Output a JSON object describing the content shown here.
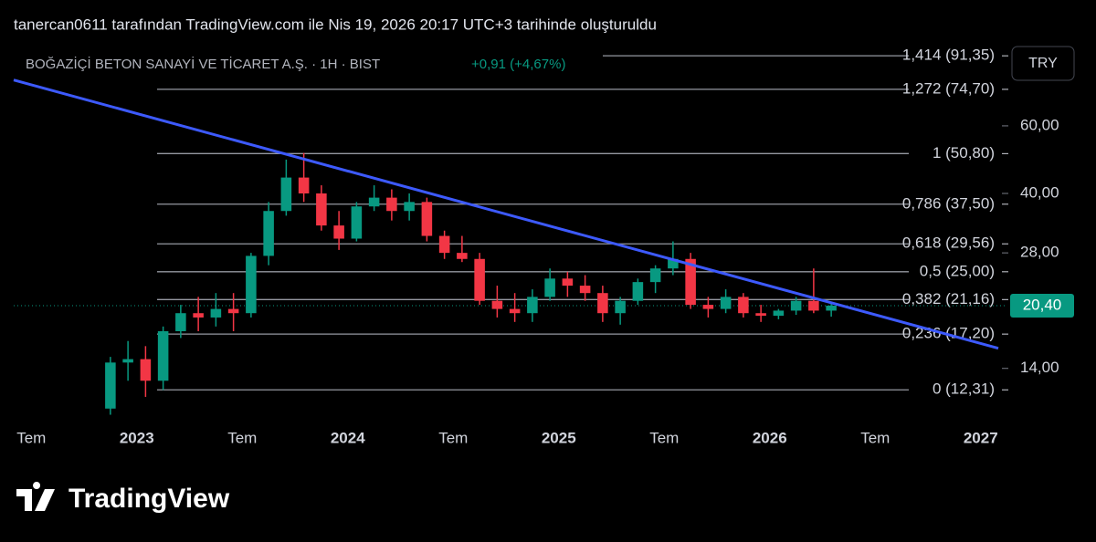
{
  "header": {
    "caption": "tanercan0611 tarafından TradingView.com ile Nis 19, 2026 20:17 UTC+3 tarihinde oluşturuldu"
  },
  "footer": {
    "brand": "TradingView"
  },
  "chart_data": {
    "type": "candlestick",
    "title": "BOĞAZİÇİ BETON SANAYİ VE TİCARET A.Ş. · 1H · BIST",
    "change": {
      "value": 0.91,
      "label": "+0,91"
    },
    "change_pct": {
      "value": 4.67,
      "label": "+4,67%"
    },
    "currency": "TRY",
    "last_price": {
      "value": 20.4,
      "label": "20,40"
    },
    "log_scale": true,
    "up_color": "#089981",
    "down_color": "#f23645",
    "ylim": [
      9.74,
      99.8
    ],
    "yticks": [
      {
        "value": 60,
        "label": "60,00"
      },
      {
        "value": 40,
        "label": "40,00"
      },
      {
        "value": 28,
        "label": "28,00"
      },
      {
        "value": 14,
        "label": "14,00"
      }
    ],
    "xlim": [
      "2022-06",
      "2027-02"
    ],
    "xticks": [
      {
        "value": "2022-07",
        "label": "Tem"
      },
      {
        "value": "2023-01",
        "label": "2023"
      },
      {
        "value": "2023-07",
        "label": "Tem"
      },
      {
        "value": "2024-01",
        "label": "2024"
      },
      {
        "value": "2024-07",
        "label": "Tem"
      },
      {
        "value": "2025-01",
        "label": "2025"
      },
      {
        "value": "2025-07",
        "label": "Tem"
      },
      {
        "value": "2026-01",
        "label": "2026"
      },
      {
        "value": "2026-07",
        "label": "Tem"
      },
      {
        "value": "2027-01",
        "label": "2027"
      }
    ],
    "fib_color": "#9598a1",
    "fib_levels": [
      {
        "value": 91.35,
        "label": "1,414 (91,35)"
      },
      {
        "value": 74.7,
        "label": "1,272 (74,70)"
      },
      {
        "value": 50.8,
        "label": "1 (50,80)"
      },
      {
        "value": 37.5,
        "label": "0,786 (37,50)"
      },
      {
        "value": 29.56,
        "label": "0,618 (29,56)"
      },
      {
        "value": 25.0,
        "label": "0,5 (25,00)"
      },
      {
        "value": 21.16,
        "label": "0,382 (21,16)"
      },
      {
        "value": 17.2,
        "label": "0,236 (17,20)"
      },
      {
        "value": 12.31,
        "label": "0 (12,31)"
      }
    ],
    "trendline": {
      "color": "#3d5afe",
      "x": [
        "2022-06",
        "2027-02"
      ],
      "y": [
        79,
        15.8
      ]
    },
    "x": [
      "2022-11",
      "2022-12",
      "2023-01",
      "2023-02",
      "2023-03",
      "2023-04",
      "2023-05",
      "2023-06",
      "2023-07",
      "2023-08",
      "2023-09",
      "2023-10",
      "2023-11",
      "2023-12",
      "2024-01",
      "2024-02",
      "2024-03",
      "2024-04",
      "2024-05",
      "2024-06",
      "2024-07",
      "2024-08",
      "2024-09",
      "2024-10",
      "2024-11",
      "2024-12",
      "2025-01",
      "2025-02",
      "2025-03",
      "2025-04",
      "2025-05",
      "2025-06",
      "2025-07",
      "2025-08",
      "2025-09",
      "2025-10",
      "2025-11",
      "2025-12",
      "2026-01",
      "2026-02",
      "2026-03",
      "2026-04"
    ],
    "open": [
      11,
      14.5,
      14.8,
      13,
      17.5,
      19.5,
      19,
      20,
      19.5,
      27.5,
      36,
      44,
      40,
      33,
      30.5,
      37,
      39,
      36,
      38,
      31,
      28,
      27,
      21,
      20,
      19.5,
      21.5,
      24,
      23,
      22,
      19.5,
      21,
      23.5,
      25.5,
      27,
      20.5,
      20,
      21.5,
      19.5,
      19.2,
      19.8,
      21,
      19.8
    ],
    "high": [
      15,
      16.5,
      16,
      18,
      20.5,
      21.5,
      22,
      22,
      28,
      38,
      49,
      51,
      42,
      36,
      38,
      42,
      41,
      40,
      39,
      32,
      31,
      28,
      23,
      22,
      22.5,
      25.5,
      25,
      24.5,
      23,
      21.5,
      24,
      26,
      30,
      28,
      21.5,
      22.5,
      22,
      20.5,
      20,
      21.5,
      25.5,
      20.6
    ],
    "low": [
      10.6,
      13,
      11.8,
      12.3,
      16.8,
      17.5,
      18,
      17.5,
      19,
      26,
      35,
      38,
      32,
      28.5,
      30,
      36,
      34,
      34,
      30,
      27,
      26.5,
      20.5,
      19,
      18.5,
      18.5,
      21,
      21.5,
      21,
      18.5,
      18.2,
      20.5,
      22,
      24.5,
      20,
      19,
      19.5,
      19,
      18.5,
      18.8,
      19.3,
      19.5,
      19.1
    ],
    "close": [
      14.5,
      14.8,
      13,
      17.5,
      19.5,
      19,
      20,
      19.5,
      27.5,
      36,
      44,
      40,
      33,
      30.5,
      37,
      39,
      36,
      38,
      31,
      28,
      27,
      21,
      20,
      19.5,
      21.5,
      24,
      23,
      22,
      19.5,
      21,
      23.5,
      25.5,
      27,
      20.5,
      20,
      21.5,
      19.5,
      19.2,
      19.8,
      21,
      19.8,
      20.4
    ]
  }
}
